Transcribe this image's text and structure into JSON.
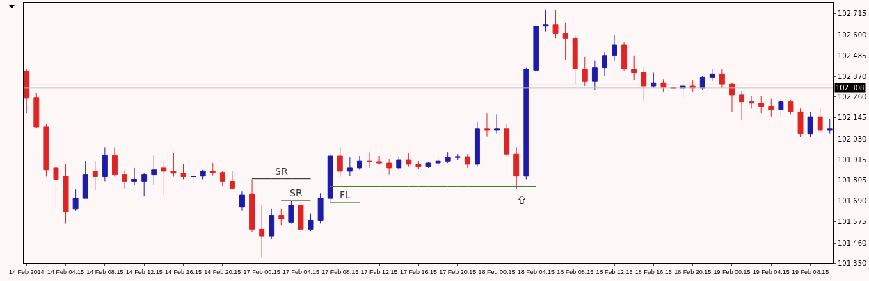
{
  "chart_data": {
    "type": "candlestick",
    "categories": [
      "14 Feb 2014",
      null,
      null,
      null,
      "14 Feb 04:15",
      null,
      null,
      null,
      "14 Feb 08:15",
      null,
      null,
      null,
      "14 Feb 12:15",
      null,
      null,
      null,
      "14 Feb 16:15",
      null,
      null,
      null,
      "14 Feb 20:15",
      null,
      null,
      null,
      "17 Feb 00:15",
      null,
      null,
      null,
      "17 Feb 04:15",
      null,
      null,
      null,
      "17 Feb 08:15",
      null,
      null,
      null,
      "17 Feb 12:15",
      null,
      null,
      null,
      "17 Feb 16:15",
      null,
      null,
      null,
      "17 Feb 20:15",
      null,
      null,
      null,
      "18 Feb 00:15",
      null,
      null,
      null,
      "18 Feb 04:15",
      null,
      null,
      null,
      "18 Feb 08:15",
      null,
      null,
      null,
      "18 Feb 12:15",
      null,
      null,
      null,
      "18 Feb 16:15",
      null,
      null,
      null,
      "18 Feb 20:15",
      null,
      null,
      null,
      "19 Feb 00:15",
      null,
      null,
      null,
      "19 Feb 04:15",
      null,
      null,
      null,
      "19 Feb 08:15",
      null,
      null
    ],
    "ohlc": [
      [
        102.401,
        102.412,
        102.17,
        102.255
      ],
      [
        102.255,
        102.281,
        102.087,
        102.095
      ],
      [
        102.095,
        102.114,
        101.823,
        101.86
      ],
      [
        101.871,
        101.89,
        101.647,
        101.808
      ],
      [
        101.826,
        101.89,
        101.565,
        101.629
      ],
      [
        101.647,
        101.752,
        101.636,
        101.703
      ],
      [
        101.703,
        101.908,
        101.703,
        101.834
      ],
      [
        101.852,
        101.908,
        101.748,
        101.823
      ],
      [
        101.823,
        101.983,
        101.797,
        101.938
      ],
      [
        101.938,
        101.983,
        101.823,
        101.834
      ],
      [
        101.834,
        101.852,
        101.759,
        101.797
      ],
      [
        101.797,
        101.871,
        101.778,
        101.808
      ],
      [
        101.797,
        101.841,
        101.714,
        101.834
      ],
      [
        101.834,
        101.938,
        101.778,
        101.86
      ],
      [
        101.871,
        101.908,
        101.722,
        101.852
      ],
      [
        101.852,
        101.953,
        101.823,
        101.841
      ],
      [
        101.841,
        101.89,
        101.808,
        101.823
      ],
      [
        101.823,
        101.845,
        101.789,
        101.826
      ],
      [
        101.826,
        101.86,
        101.808,
        101.852
      ],
      [
        101.852,
        101.897,
        101.83,
        101.845
      ],
      [
        101.845,
        101.852,
        101.77,
        101.797
      ],
      [
        101.797,
        101.852,
        101.752,
        101.759
      ],
      [
        101.655,
        101.741,
        101.636,
        101.722
      ],
      [
        101.729,
        101.808,
        101.517,
        101.535
      ],
      [
        101.535,
        101.666,
        101.379,
        101.498
      ],
      [
        101.498,
        101.647,
        101.48,
        101.61
      ],
      [
        101.61,
        101.647,
        101.554,
        101.591
      ],
      [
        101.573,
        101.692,
        101.565,
        101.666
      ],
      [
        101.666,
        101.685,
        101.517,
        101.535
      ],
      [
        101.535,
        101.621,
        101.524,
        101.584
      ],
      [
        101.584,
        101.733,
        101.565,
        101.703
      ],
      [
        101.703,
        101.946,
        101.685,
        101.935
      ],
      [
        101.935,
        101.983,
        101.823,
        101.852
      ],
      [
        101.852,
        101.927,
        101.826,
        101.871
      ],
      [
        101.871,
        101.935,
        101.86,
        101.908
      ],
      [
        101.908,
        101.957,
        101.871,
        101.905
      ],
      [
        101.905,
        101.935,
        101.89,
        101.897
      ],
      [
        101.897,
        101.92,
        101.834,
        101.871
      ],
      [
        101.871,
        101.935,
        101.86,
        101.916
      ],
      [
        101.916,
        101.953,
        101.879,
        101.89
      ],
      [
        101.89,
        101.908,
        101.864,
        101.879
      ],
      [
        101.879,
        101.901,
        101.871,
        101.897
      ],
      [
        101.897,
        101.927,
        101.882,
        101.908
      ],
      [
        101.908,
        101.957,
        101.897,
        101.927
      ],
      [
        101.927,
        101.946,
        101.916,
        101.931
      ],
      [
        101.931,
        101.946,
        101.871,
        101.89
      ],
      [
        101.89,
        102.121,
        101.879,
        102.084
      ],
      [
        102.084,
        102.17,
        102.043,
        102.076
      ],
      [
        102.076,
        102.162,
        102.058,
        102.084
      ],
      [
        102.084,
        102.114,
        101.935,
        101.946
      ],
      [
        101.946,
        101.983,
        101.752,
        101.826
      ],
      [
        101.826,
        102.419,
        101.808,
        102.412
      ],
      [
        102.405,
        102.654,
        102.393,
        102.647
      ],
      [
        102.647,
        102.733,
        102.617,
        102.654
      ],
      [
        102.654,
        102.733,
        102.58,
        102.606
      ],
      [
        102.606,
        102.666,
        102.46,
        102.58
      ],
      [
        102.58,
        102.599,
        102.33,
        102.412
      ],
      [
        102.412,
        102.479,
        102.319,
        102.345
      ],
      [
        102.345,
        102.457,
        102.3,
        102.419
      ],
      [
        102.419,
        102.505,
        102.375,
        102.487
      ],
      [
        102.487,
        102.599,
        102.457,
        102.543
      ],
      [
        102.543,
        102.561,
        102.401,
        102.412
      ],
      [
        102.412,
        102.487,
        102.349,
        102.393
      ],
      [
        102.393,
        102.423,
        102.237,
        102.319
      ],
      [
        102.319,
        102.393,
        102.308,
        102.337
      ],
      [
        102.337,
        102.356,
        102.289,
        102.311
      ],
      [
        102.311,
        102.393,
        102.3,
        102.308
      ],
      [
        102.308,
        102.345,
        102.255,
        102.319
      ],
      [
        102.319,
        102.349,
        102.289,
        102.308
      ],
      [
        102.308,
        102.375,
        102.3,
        102.367
      ],
      [
        102.367,
        102.412,
        102.345,
        102.386
      ],
      [
        102.386,
        102.412,
        102.308,
        102.33
      ],
      [
        102.33,
        102.337,
        102.177,
        102.27
      ],
      [
        102.27,
        102.293,
        102.132,
        102.233
      ],
      [
        102.233,
        102.263,
        102.196,
        102.225
      ],
      [
        102.225,
        102.263,
        102.17,
        102.207
      ],
      [
        102.207,
        102.252,
        102.151,
        102.188
      ],
      [
        102.188,
        102.244,
        102.151,
        102.233
      ],
      [
        102.233,
        102.244,
        102.162,
        102.177
      ],
      [
        102.177,
        102.196,
        102.039,
        102.058
      ],
      [
        102.058,
        102.177,
        102.039,
        102.151
      ],
      [
        102.151,
        102.196,
        102.065,
        102.076
      ],
      [
        102.076,
        102.14,
        102.058,
        102.084
      ]
    ],
    "colors": [
      "#e02424",
      "#e02424",
      "#e02424",
      "#e02424",
      "#e02424",
      "#1c1ca8",
      "#1c1ca8",
      "#e02424",
      "#1c1ca8",
      "#e02424",
      "#e02424",
      "#1c1ca8",
      "#1c1ca8",
      "#1c1ca8",
      "#e02424",
      "#e02424",
      "#e02424",
      "#1c1ca8",
      "#1c1ca8",
      "#e02424",
      "#e02424",
      "#e02424",
      "#1c1ca8",
      "#e02424",
      "#e02424",
      "#1c1ca8",
      "#e02424",
      "#1c1ca8",
      "#e02424",
      "#1c1ca8",
      "#1c1ca8",
      "#1c1ca8",
      "#e02424",
      "#1c1ca8",
      "#1c1ca8",
      "#e02424",
      "#e02424",
      "#e02424",
      "#1c1ca8",
      "#e02424",
      "#e02424",
      "#1c1ca8",
      "#1c1ca8",
      "#1c1ca8",
      "#1c1ca8",
      "#e02424",
      "#1c1ca8",
      "#e02424",
      "#1c1ca8",
      "#e02424",
      "#e02424",
      "#1c1ca8",
      "#1c1ca8",
      "#1c1ca8",
      "#e02424",
      "#e02424",
      "#e02424",
      "#e02424",
      "#1c1ca8",
      "#1c1ca8",
      "#1c1ca8",
      "#e02424",
      "#e02424",
      "#e02424",
      "#1c1ca8",
      "#e02424",
      "#e02424",
      "#1c1ca8",
      "#e02424",
      "#1c1ca8",
      "#1c1ca8",
      "#e02424",
      "#e02424",
      "#e02424",
      "#e02424",
      "#e02424",
      "#e02424",
      "#1c1ca8",
      "#e02424",
      "#e02424",
      "#1c1ca8",
      "#e02424",
      "#1c1ca8"
    ],
    "series": [
      {
        "type": "line",
        "name": "SR",
        "color": "#1a1a1a",
        "values": [
          null,
          null,
          null,
          null,
          null,
          null,
          null,
          null,
          null,
          null,
          null,
          null,
          null,
          null,
          null,
          null,
          null,
          null,
          null,
          null,
          null,
          null,
          null,
          101.811,
          101.811,
          101.811,
          101.811,
          101.811,
          101.811,
          101.811,
          null,
          null,
          null,
          null,
          null,
          null,
          null,
          null,
          null,
          null,
          null,
          null,
          null,
          null,
          null,
          null,
          null,
          null,
          null,
          null,
          null,
          null,
          null,
          null,
          null,
          null,
          null,
          null,
          null,
          null,
          null,
          null,
          null,
          null,
          null,
          null,
          null,
          null,
          null,
          null,
          null,
          null,
          null,
          null,
          null,
          null,
          null,
          null,
          null,
          null,
          null,
          null,
          null
        ]
      },
      {
        "type": "line",
        "name": "SR",
        "color": "#1a1a1a",
        "values": [
          null,
          null,
          null,
          null,
          null,
          null,
          null,
          null,
          null,
          null,
          null,
          null,
          null,
          null,
          null,
          null,
          null,
          null,
          null,
          null,
          null,
          null,
          null,
          null,
          null,
          null,
          101.692,
          101.692,
          101.692,
          101.692,
          null,
          null,
          null,
          null,
          null,
          null,
          null,
          null,
          null,
          null,
          null,
          null,
          null,
          null,
          null,
          null,
          null,
          null,
          null,
          null,
          null,
          null,
          null,
          null,
          null,
          null,
          null,
          null,
          null,
          null,
          null,
          null,
          null,
          null,
          null,
          null,
          null,
          null,
          null,
          null,
          null,
          null,
          null,
          null,
          null,
          null,
          null,
          null,
          null,
          null,
          null,
          null,
          null
        ]
      },
      {
        "type": "line",
        "color": "#3c7d2c",
        "values": [
          null,
          null,
          null,
          null,
          null,
          null,
          null,
          null,
          null,
          null,
          null,
          null,
          null,
          null,
          null,
          null,
          null,
          null,
          null,
          null,
          null,
          null,
          null,
          null,
          null,
          null,
          null,
          null,
          null,
          null,
          null,
          101.77,
          101.77,
          101.77,
          101.77,
          101.77,
          101.77,
          101.77,
          101.77,
          101.77,
          101.77,
          101.77,
          101.77,
          101.77,
          101.77,
          101.77,
          101.77,
          101.77,
          101.77,
          101.77,
          101.77,
          101.77,
          101.77,
          null,
          null,
          null,
          null,
          null,
          null,
          null,
          null,
          null,
          null,
          null,
          null,
          null,
          null,
          null,
          null,
          null,
          null,
          null,
          null,
          null,
          null,
          null,
          null,
          null,
          null,
          null,
          null,
          null,
          null
        ]
      },
      {
        "type": "line",
        "name": "FL",
        "color": "#3c7d2c",
        "values": [
          null,
          null,
          null,
          null,
          null,
          null,
          null,
          null,
          null,
          null,
          null,
          null,
          null,
          null,
          null,
          null,
          null,
          null,
          null,
          null,
          null,
          null,
          null,
          null,
          null,
          null,
          null,
          null,
          null,
          null,
          null,
          101.681,
          101.681,
          101.681,
          101.681,
          null,
          null,
          null,
          null,
          null,
          null,
          null,
          null,
          null,
          null,
          null,
          null,
          null,
          null,
          null,
          null,
          null,
          null,
          null,
          null,
          null,
          null,
          null,
          null,
          null,
          null,
          null,
          null,
          null,
          null,
          null,
          null,
          null,
          null,
          null,
          null,
          null,
          null,
          null,
          null,
          null,
          null,
          null,
          null,
          null,
          null,
          null,
          null
        ]
      }
    ],
    "ylim": [
      101.35,
      102.775
    ],
    "yticks": [
      {
        "value": 101.35,
        "label": "101.350"
      },
      {
        "value": 101.46,
        "label": "101.460"
      },
      101.575,
      {
        "value": 101.69,
        "label": "101.690"
      },
      101.805,
      101.915,
      {
        "value": 102.03,
        "label": "102.030"
      },
      102.145,
      {
        "value": 102.26,
        "label": "102.260"
      },
      {
        "value": 102.37,
        "label": "102.370"
      },
      102.485,
      {
        "value": 102.6,
        "label": "102.600"
      },
      102.715
    ],
    "ref_lines": [
      {
        "axis": "y",
        "value": 102.325,
        "color": "#e2582a"
      },
      {
        "axis": "y",
        "value": 102.308,
        "label": "102.308",
        "color": "#c4c4c4"
      }
    ]
  }
}
